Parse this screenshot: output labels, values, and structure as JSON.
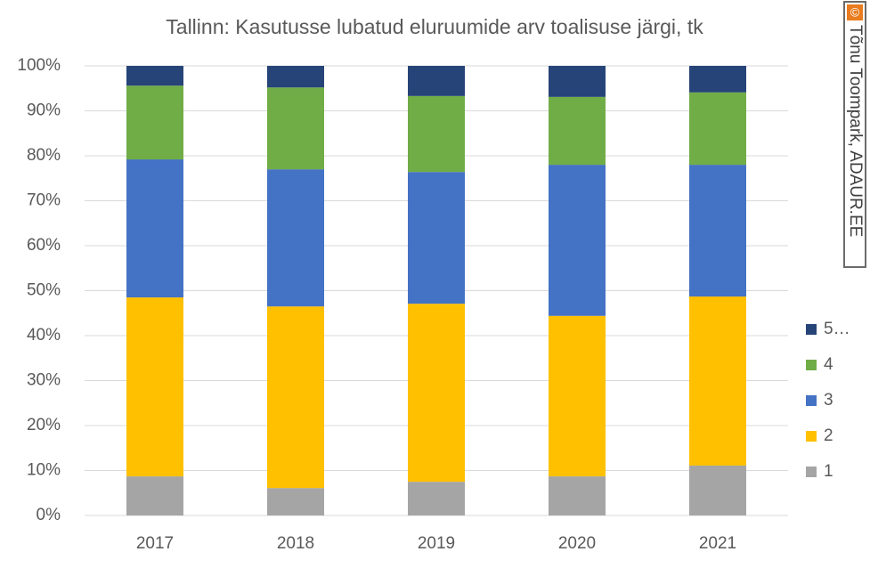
{
  "chart_data": {
    "type": "stacked_bar_100",
    "title": "Tallinn: Kasutusse lubatud eluruumide arv toalisuse järgi, tk",
    "categories": [
      "2017",
      "2018",
      "2019",
      "2020",
      "2021"
    ],
    "series": [
      {
        "name": "1",
        "color": "#a5a5a5",
        "values": [
          8.7,
          6.1,
          7.5,
          8.7,
          11.1
        ]
      },
      {
        "name": "2",
        "color": "#ffc000",
        "values": [
          39.8,
          40.4,
          39.6,
          35.7,
          37.6
        ]
      },
      {
        "name": "3",
        "color": "#4472c4",
        "values": [
          30.7,
          30.5,
          29.3,
          33.6,
          29.3
        ]
      },
      {
        "name": "4",
        "color": "#70ad47",
        "values": [
          16.4,
          18.2,
          16.9,
          15.1,
          16.1
        ]
      },
      {
        "name": "5…",
        "color": "#264478",
        "values": [
          4.4,
          4.8,
          6.7,
          6.9,
          5.9
        ]
      }
    ],
    "ylim": [
      0,
      100
    ],
    "yticks": [
      {
        "value": 0,
        "label": "0%"
      },
      {
        "value": 10,
        "label": "10%"
      },
      {
        "value": 20,
        "label": "20%"
      },
      {
        "value": 30,
        "label": "30%"
      },
      {
        "value": 40,
        "label": "40%"
      },
      {
        "value": 50,
        "label": "50%"
      },
      {
        "value": 60,
        "label": "60%"
      },
      {
        "value": 70,
        "label": "70%"
      },
      {
        "value": 80,
        "label": "80%"
      },
      {
        "value": 90,
        "label": "90%"
      },
      {
        "value": 100,
        "label": "100%"
      }
    ],
    "grid": true,
    "legend": "right",
    "copyright_symbol": "©",
    "annotation": "Tõnu Toompark, ADAUR.EE"
  }
}
